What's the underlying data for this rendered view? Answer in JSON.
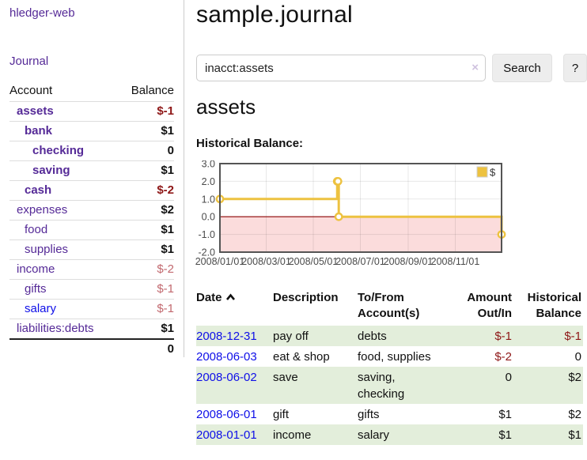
{
  "sidebar": {
    "app_title": "hledger-web",
    "journal_label": "Journal",
    "table": {
      "account_header": "Account",
      "balance_header": "Balance",
      "accounts": [
        {
          "name": "assets",
          "balance": "$-1"
        },
        {
          "name": "bank",
          "balance": "$1"
        },
        {
          "name": "checking",
          "balance": "0"
        },
        {
          "name": "saving",
          "balance": "$1"
        },
        {
          "name": "cash",
          "balance": "$-2"
        },
        {
          "name": "expenses",
          "balance": "$2"
        },
        {
          "name": "food",
          "balance": "$1"
        },
        {
          "name": "supplies",
          "balance": "$1"
        },
        {
          "name": "income",
          "balance": "$-2"
        },
        {
          "name": "gifts",
          "balance": "$-1"
        },
        {
          "name": "salary",
          "balance": "$-1"
        },
        {
          "name": "liabilities:debts",
          "balance": "$1"
        }
      ],
      "total": "0"
    }
  },
  "header": {
    "title": "sample.journal"
  },
  "search": {
    "query": "inacct:assets",
    "clear_icon": "×",
    "search_label": "Search",
    "help_label": "?"
  },
  "account_page": {
    "title": "assets",
    "chart_label": "Historical Balance:"
  },
  "chart_data": {
    "type": "line",
    "step": true,
    "title": "Historical Balance of assets",
    "xlim": [
      0,
      365
    ],
    "ylim": [
      -2,
      3
    ],
    "series": [
      {
        "name": "$",
        "color": "#edc240",
        "points": [
          {
            "date": "2008-01-01",
            "day": 0,
            "value": 1
          },
          {
            "date": "2008-06-01",
            "day": 152,
            "value": 2
          },
          {
            "date": "2008-06-02",
            "day": 153,
            "value": 2
          },
          {
            "date": "2008-06-03",
            "day": 154,
            "value": 0
          },
          {
            "date": "2008-12-31",
            "day": 365,
            "value": -1
          }
        ]
      }
    ],
    "xticks": [
      {
        "day": 0,
        "label": "2008/01/01"
      },
      {
        "day": 60,
        "label": "2008/03/01"
      },
      {
        "day": 121,
        "label": "2008/05/01"
      },
      {
        "day": 182,
        "label": "2008/07/01"
      },
      {
        "day": 244,
        "label": "2008/09/01"
      },
      {
        "day": 305,
        "label": "2008/11/01"
      }
    ],
    "yticks": [
      {
        "value": 3,
        "label": "3.0"
      },
      {
        "value": 2,
        "label": "2.0"
      },
      {
        "value": 1,
        "label": "1.0"
      },
      {
        "value": 0,
        "label": "0.0"
      },
      {
        "value": -1,
        "label": "-1.0"
      },
      {
        "value": -2,
        "label": "-2.0"
      }
    ],
    "legend_position": "ne",
    "grid": true,
    "zero_line": true,
    "negative_region": true,
    "colors": {
      "border": "#545454",
      "grid": "rgba(0,0,0,0.09)",
      "tick_text": "#4a4a4a",
      "zero_line": "#8b0000",
      "negative_fill": "#fbdcdc",
      "marker_fill": "#ffffff"
    }
  },
  "register_table": {
    "headers": {
      "date": "Date",
      "description": "Description",
      "to_from": "To/From Account(s)",
      "amount": "Amount Out/In",
      "balance": "Historical Balance"
    },
    "rows": [
      {
        "date": "2008-12-31",
        "description": "pay off",
        "to_from": "debts",
        "amount": "$-1",
        "balance": "$-1"
      },
      {
        "date": "2008-06-03",
        "description": "eat & shop",
        "to_from": "food, supplies",
        "amount": "$-2",
        "balance": "0"
      },
      {
        "date": "2008-06-02",
        "description": "save",
        "to_from": "saving,\nchecking",
        "amount": "0",
        "balance": "$2"
      },
      {
        "date": "2008-06-01",
        "description": "gift",
        "to_from": "gifts",
        "amount": "$1",
        "balance": "$2"
      },
      {
        "date": "2008-01-01",
        "description": "income",
        "to_from": "salary",
        "amount": "$1",
        "balance": "$1"
      }
    ]
  },
  "colors": {
    "accent_purple": "#552a97",
    "link_blue": "#0f0fe8",
    "negative_strong": "#8e1717",
    "negative_light": "#c2696f",
    "row_green": "#e3eedb",
    "series_yellow": "#edc240"
  }
}
